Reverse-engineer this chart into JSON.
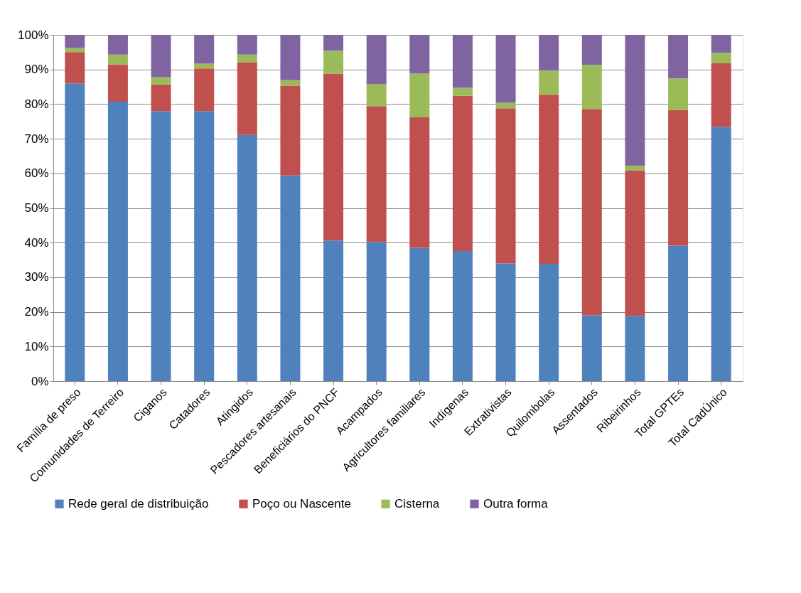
{
  "chart_data": {
    "type": "bar",
    "stacked": true,
    "categories": [
      "Família de preso",
      "Comunidades de Terreiro",
      "Ciganos",
      "Catadores",
      "Atingidos",
      "Pescadores artesanais",
      "Beneficiários do PNCF",
      "Acampados",
      "Agricultores familiares",
      "Indígenas",
      "Extrativistas",
      "Quilombolas",
      "Assentados",
      "Ribeirinhos",
      "Total GPTEs",
      "Total CadÚnico"
    ],
    "series": [
      {
        "name": "Rede geral de distribuição",
        "color": "#4f81bd",
        "values": [
          86,
          80.7,
          78,
          78,
          71.1,
          59.4,
          40.6,
          40.2,
          38.5,
          37.6,
          34.0,
          33.9,
          19.0,
          18.8,
          39.1,
          73.4
        ]
      },
      {
        "name": "Poço ou Nascente",
        "color": "#c0504d",
        "values": [
          9,
          10.8,
          7.7,
          12.3,
          21,
          25.9,
          48.2,
          39.2,
          37.7,
          44.8,
          44.8,
          48.8,
          59.6,
          42.0,
          39.2,
          18.4
        ]
      },
      {
        "name": "Cisterna",
        "color": "#9bbb59",
        "values": [
          1.2,
          2.8,
          2.1,
          1.4,
          2.2,
          1.6,
          6.6,
          6.4,
          12.6,
          2.3,
          1.6,
          7.0,
          12.7,
          1.4,
          9.1,
          3.0
        ]
      },
      {
        "name": "Outra forma",
        "color": "#8064a2",
        "values": [
          3.8,
          5.7,
          12.2,
          8.3,
          5.7,
          13.1,
          4.6,
          14.2,
          11.2,
          15.3,
          19.6,
          10.3,
          8.7,
          37.8,
          12.6,
          5.2
        ]
      }
    ],
    "ylim": [
      0,
      100
    ],
    "yticks": [
      {
        "value": 0,
        "label": "0%"
      },
      {
        "value": 10,
        "label": "10%"
      },
      {
        "value": 20,
        "label": "20%"
      },
      {
        "value": 30,
        "label": "30%"
      },
      {
        "value": 40,
        "label": "40%"
      },
      {
        "value": 50,
        "label": "50%"
      },
      {
        "value": 60,
        "label": "60%"
      },
      {
        "value": 70,
        "label": "70%"
      },
      {
        "value": 80,
        "label": "80%"
      },
      {
        "value": 90,
        "label": "90%"
      },
      {
        "value": 100,
        "label": "100%"
      }
    ],
    "grid": "y",
    "legend": "bottom"
  }
}
